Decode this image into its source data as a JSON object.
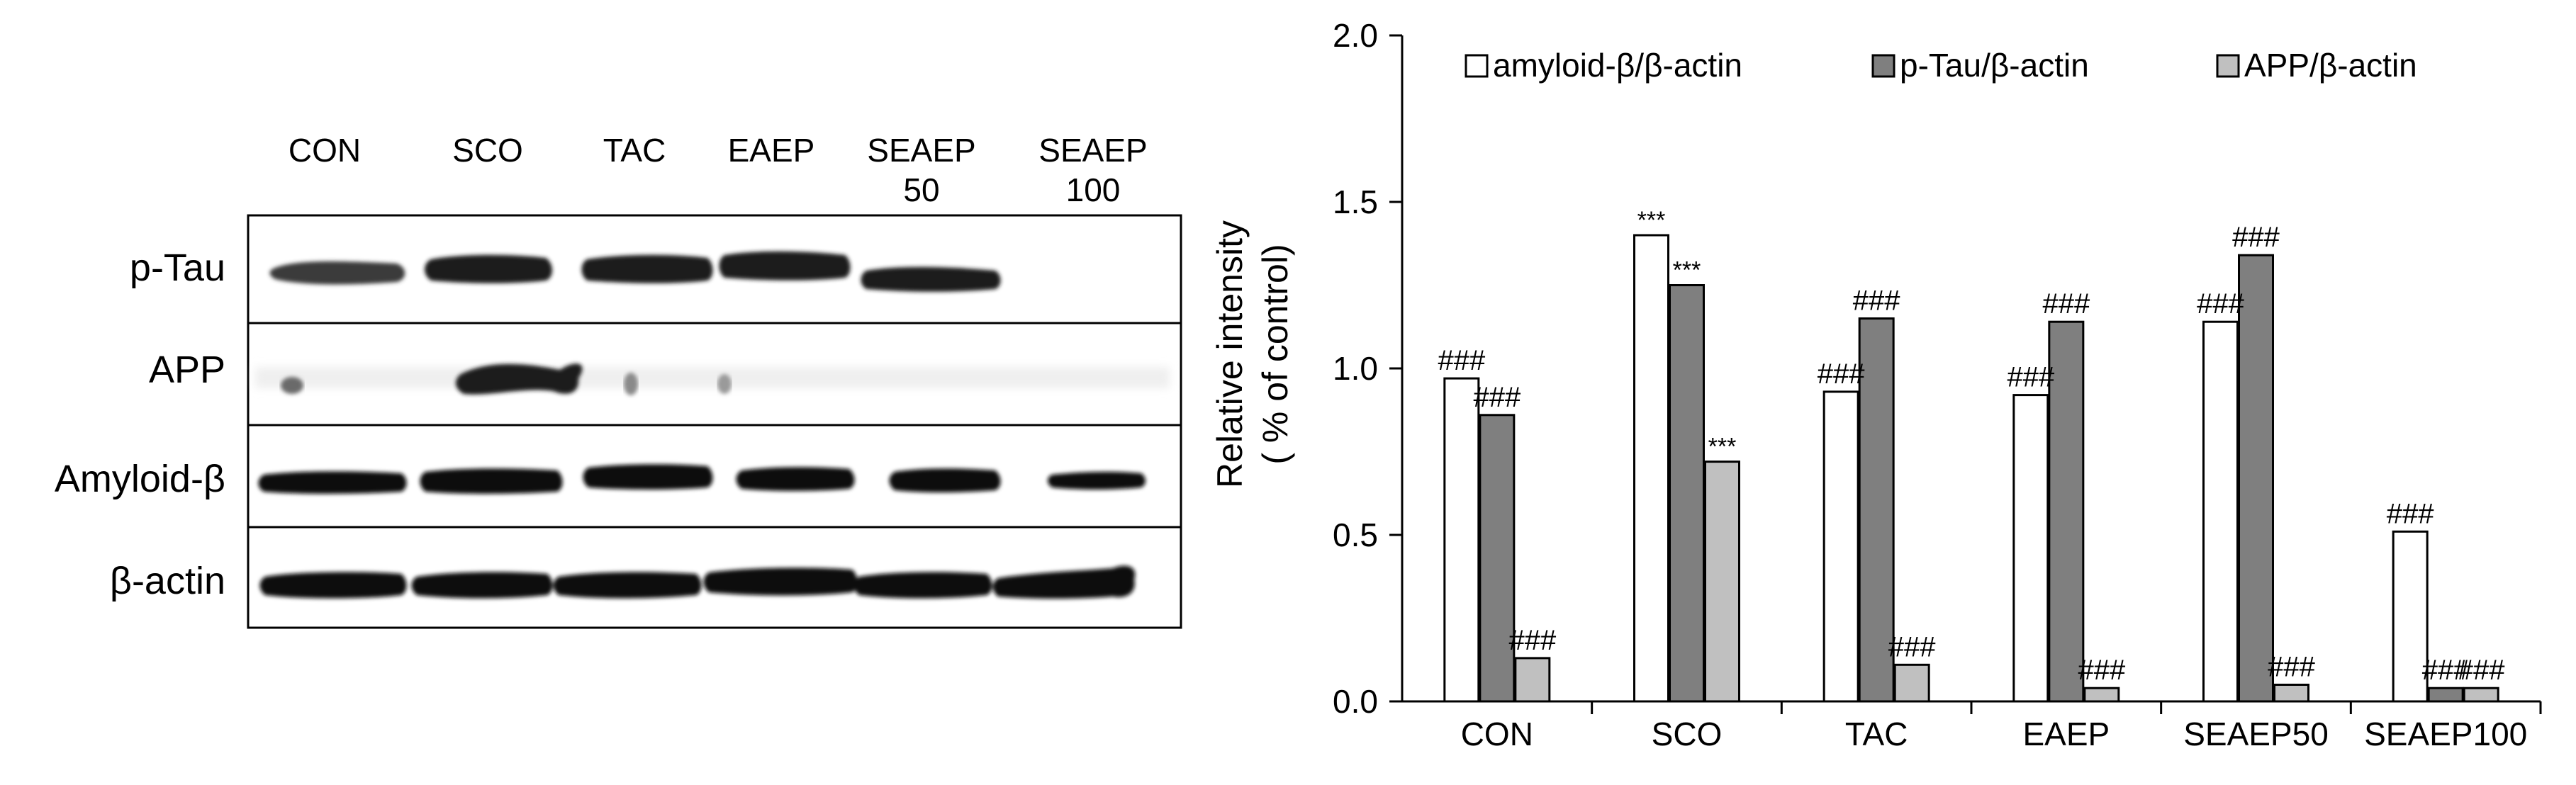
{
  "blot": {
    "lanes": [
      {
        "line1": "CON",
        "line2": ""
      },
      {
        "line1": "SCO",
        "line2": ""
      },
      {
        "line1": "TAC",
        "line2": ""
      },
      {
        "line1": "EAEP",
        "line2": ""
      },
      {
        "line1": "SEAEP",
        "line2": "50"
      },
      {
        "line1": "SEAEP",
        "line2": "100"
      }
    ],
    "rows": [
      "p-Tau",
      "APP",
      "Amyloid-β",
      "β-actin"
    ]
  },
  "chart_data": {
    "type": "bar",
    "title": "",
    "xlabel": "",
    "ylabel_line1": "Relative intensity",
    "ylabel_line2": "( % of control)",
    "ylim": [
      0,
      2.0
    ],
    "yticks": [
      "0.0",
      "0.5",
      "1.0",
      "1.5",
      "2.0"
    ],
    "grid": false,
    "legend_position": "top",
    "categories": [
      "CON",
      "SCO",
      "TAC",
      "EAEP",
      "SEAEP50",
      "SEAEP100"
    ],
    "series": [
      {
        "name": "amyloid-β/β-actin",
        "color": "#ffffff",
        "values": [
          0.97,
          1.4,
          0.93,
          0.92,
          1.14,
          0.51
        ],
        "annotations": [
          "###",
          "***",
          "###",
          "###",
          "###",
          "###"
        ]
      },
      {
        "name": "p-Tau/β-actin",
        "color": "#7f7f7f",
        "values": [
          0.86,
          1.25,
          1.15,
          1.14,
          1.34,
          0.04
        ],
        "annotations": [
          "###",
          "***",
          "###",
          "###",
          "###",
          "###"
        ]
      },
      {
        "name": "APP/β-actin",
        "color": "#c0c0c0",
        "values": [
          0.13,
          0.72,
          0.11,
          0.04,
          0.05,
          0.04
        ],
        "annotations": [
          "###",
          "***",
          "###",
          "###",
          "###",
          "###"
        ]
      }
    ]
  }
}
